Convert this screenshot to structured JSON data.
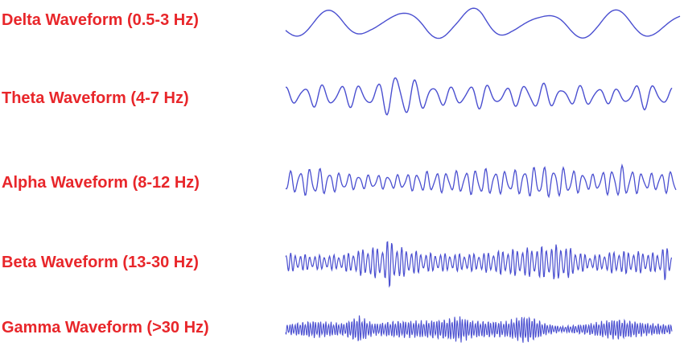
{
  "label_color": "#e8262a",
  "wave_color": "#4a4fd0",
  "waveforms": [
    {
      "label": "Delta Waveform (0.5-3 Hz)",
      "band_hz": "0.5-3"
    },
    {
      "label": "Theta Waveform (4-7 Hz)",
      "band_hz": "4-7"
    },
    {
      "label": "Alpha Waveform (8-12 Hz)",
      "band_hz": "8-12"
    },
    {
      "label": "Beta Waveform (13-30 Hz)",
      "band_hz": "13-30"
    },
    {
      "label": "Gamma Waveform (>30 Hz)",
      "band_hz": ">30"
    }
  ]
}
